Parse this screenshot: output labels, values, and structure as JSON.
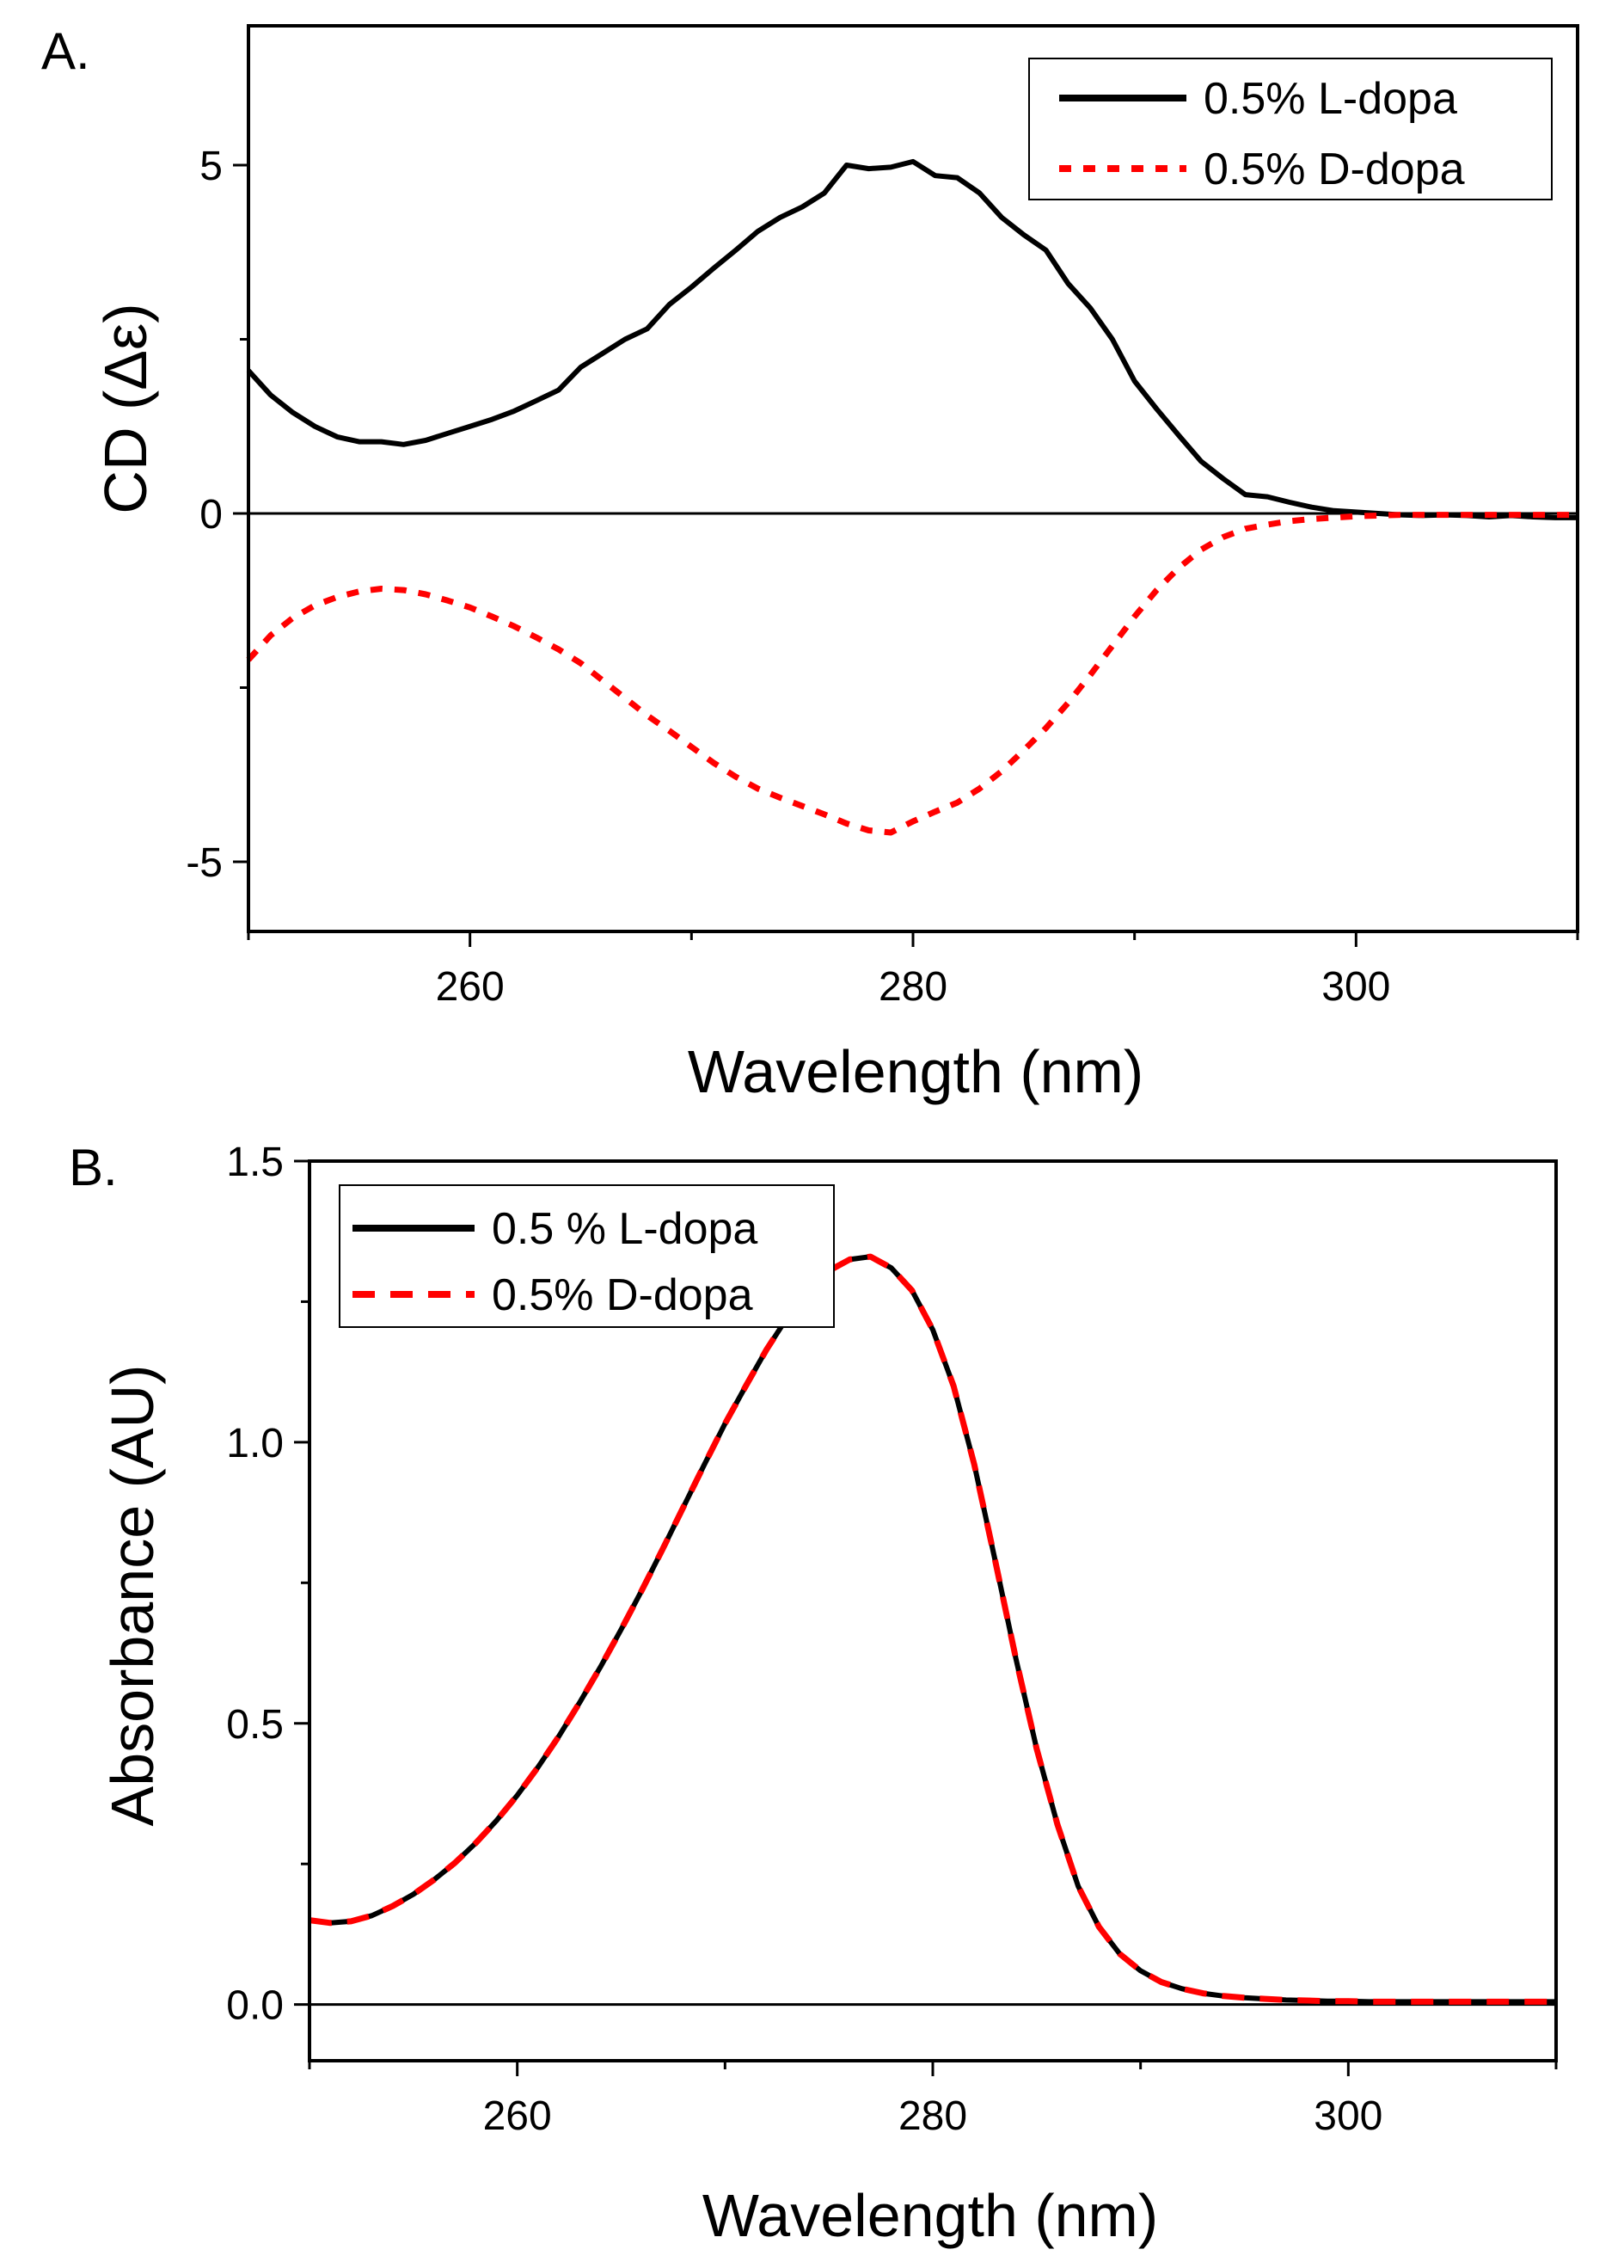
{
  "panels": {
    "a": {
      "letter": "A.",
      "chart_data": {
        "type": "line",
        "title": "",
        "xlabel": "Wavelength (nm)",
        "ylabel": "CD (Δε)",
        "xlim": [
          250,
          310
        ],
        "ylim": [
          -6,
          7
        ],
        "xticks": [
          260,
          280,
          300
        ],
        "yticks": [
          -5,
          0,
          5
        ],
        "xtick_labels": [
          "260",
          "280",
          "300"
        ],
        "ytick_labels": [
          "-5",
          "0",
          "5"
        ],
        "zero_line": true,
        "grid": false,
        "legend_position": "top-right",
        "series": [
          {
            "name": "0.5% L-dopa",
            "color": "#000000",
            "style": "solid",
            "x": [
              250,
              251,
              252,
              253,
              254,
              255,
              256,
              257,
              258,
              259,
              260,
              261,
              262,
              263,
              264,
              265,
              266,
              267,
              268,
              269,
              270,
              271,
              272,
              273,
              274,
              275,
              276,
              277,
              278,
              279,
              280,
              281,
              282,
              283,
              284,
              285,
              286,
              287,
              288,
              289,
              290,
              291,
              292,
              293,
              294,
              295,
              296,
              297,
              298,
              299,
              300,
              301,
              302,
              303,
              304,
              305,
              306,
              307,
              308,
              309,
              310
            ],
            "y": [
              2.05,
              1.7,
              1.45,
              1.25,
              1.1,
              1.03,
              1.03,
              0.99,
              1.05,
              1.15,
              1.25,
              1.35,
              1.47,
              1.62,
              1.77,
              2.1,
              2.3,
              2.5,
              2.65,
              3.0,
              3.25,
              3.52,
              3.78,
              4.05,
              4.25,
              4.4,
              4.6,
              5.0,
              4.95,
              4.97,
              5.05,
              4.85,
              4.82,
              4.6,
              4.25,
              4.0,
              3.78,
              3.3,
              2.95,
              2.5,
              1.9,
              1.5,
              1.12,
              0.75,
              0.5,
              0.27,
              0.24,
              0.16,
              0.09,
              0.04,
              0.02,
              0.0,
              -0.02,
              -0.03,
              -0.02,
              -0.03,
              -0.05,
              -0.03,
              -0.05,
              -0.06,
              -0.06
            ]
          },
          {
            "name": "0.5% D-dopa",
            "color": "#ff0000",
            "style": "dotted",
            "x": [
              250,
              251,
              252,
              253,
              254,
              255,
              256,
              257,
              258,
              259,
              260,
              261,
              262,
              263,
              264,
              265,
              266,
              267,
              268,
              269,
              270,
              271,
              272,
              273,
              274,
              275,
              276,
              277,
              278,
              279,
              280,
              281,
              282,
              283,
              284,
              285,
              286,
              287,
              288,
              289,
              290,
              291,
              292,
              293,
              294,
              295,
              296,
              297,
              298,
              299,
              300,
              301,
              302,
              303,
              304,
              305,
              306,
              307,
              308,
              309,
              310
            ],
            "y": [
              -2.1,
              -1.75,
              -1.5,
              -1.32,
              -1.2,
              -1.12,
              -1.08,
              -1.1,
              -1.16,
              -1.25,
              -1.35,
              -1.48,
              -1.62,
              -1.78,
              -1.95,
              -2.15,
              -2.4,
              -2.65,
              -2.9,
              -3.12,
              -3.35,
              -3.58,
              -3.78,
              -3.95,
              -4.08,
              -4.2,
              -4.32,
              -4.45,
              -4.55,
              -4.58,
              -4.42,
              -4.28,
              -4.15,
              -3.95,
              -3.7,
              -3.4,
              -3.08,
              -2.72,
              -2.32,
              -1.9,
              -1.48,
              -1.1,
              -0.78,
              -0.52,
              -0.34,
              -0.22,
              -0.16,
              -0.11,
              -0.08,
              -0.06,
              -0.04,
              -0.03,
              -0.02,
              -0.02,
              -0.02,
              -0.02,
              -0.02,
              -0.02,
              -0.02,
              -0.02,
              -0.02
            ]
          }
        ]
      }
    },
    "b": {
      "letter": "B.",
      "chart_data": {
        "type": "line",
        "title": "",
        "xlabel": "Wavelength (nm)",
        "ylabel": "Absorbance (AU)",
        "xlim": [
          250,
          310
        ],
        "ylim": [
          -0.1,
          1.5
        ],
        "xticks": [
          260,
          280,
          300
        ],
        "yticks": [
          0.0,
          0.5,
          1.0,
          1.5
        ],
        "xtick_labels": [
          "260",
          "280",
          "300"
        ],
        "ytick_labels": [
          "0.0",
          "0.5",
          "1.0",
          "1.5"
        ],
        "zero_line": true,
        "grid": false,
        "legend_position": "top-left",
        "series": [
          {
            "name": "0.5 % L-dopa",
            "color": "#000000",
            "style": "solid",
            "x": [
              250,
              251,
              252,
              253,
              254,
              255,
              256,
              257,
              258,
              259,
              260,
              261,
              262,
              263,
              264,
              265,
              266,
              267,
              268,
              269,
              270,
              271,
              272,
              273,
              274,
              275,
              276,
              277,
              278,
              279,
              280,
              281,
              282,
              283,
              284,
              285,
              286,
              287,
              288,
              289,
              290,
              291,
              292,
              293,
              294,
              295,
              296,
              297,
              298,
              299,
              300,
              301,
              302,
              303,
              304,
              305,
              306,
              307,
              308,
              309,
              310
            ],
            "y": [
              0.15,
              0.145,
              0.148,
              0.158,
              0.175,
              0.196,
              0.222,
              0.252,
              0.287,
              0.327,
              0.372,
              0.422,
              0.477,
              0.537,
              0.6,
              0.667,
              0.737,
              0.81,
              0.885,
              0.96,
              1.033,
              1.1,
              1.165,
              1.222,
              1.27,
              1.305,
              1.325,
              1.33,
              1.31,
              1.27,
              1.2,
              1.1,
              0.96,
              0.79,
              0.615,
              0.455,
              0.32,
              0.21,
              0.138,
              0.09,
              0.06,
              0.04,
              0.028,
              0.02,
              0.015,
              0.012,
              0.01,
              0.008,
              0.007,
              0.006,
              0.006,
              0.005,
              0.005,
              0.005,
              0.005,
              0.005,
              0.005,
              0.005,
              0.005,
              0.005,
              0.005
            ]
          },
          {
            "name": "0.5% D-dopa",
            "color": "#ff0000",
            "style": "dashed",
            "x": [
              250,
              251,
              252,
              253,
              254,
              255,
              256,
              257,
              258,
              259,
              260,
              261,
              262,
              263,
              264,
              265,
              266,
              267,
              268,
              269,
              270,
              271,
              272,
              273,
              274,
              275,
              276,
              277,
              278,
              279,
              280,
              281,
              282,
              283,
              284,
              285,
              286,
              287,
              288,
              289,
              290,
              291,
              292,
              293,
              294,
              295,
              296,
              297,
              298,
              299,
              300,
              301,
              302,
              303,
              304,
              305,
              306,
              307,
              308,
              309,
              310
            ],
            "y": [
              0.15,
              0.145,
              0.148,
              0.158,
              0.175,
              0.196,
              0.222,
              0.252,
              0.287,
              0.327,
              0.372,
              0.422,
              0.477,
              0.537,
              0.6,
              0.667,
              0.737,
              0.81,
              0.885,
              0.96,
              1.033,
              1.1,
              1.165,
              1.222,
              1.27,
              1.305,
              1.325,
              1.33,
              1.31,
              1.27,
              1.2,
              1.1,
              0.96,
              0.79,
              0.615,
              0.455,
              0.32,
              0.21,
              0.138,
              0.09,
              0.06,
              0.04,
              0.028,
              0.02,
              0.015,
              0.012,
              0.01,
              0.008,
              0.007,
              0.006,
              0.006,
              0.005,
              0.005,
              0.005,
              0.005,
              0.005,
              0.005,
              0.005,
              0.005,
              0.005,
              0.005
            ]
          }
        ]
      }
    }
  }
}
